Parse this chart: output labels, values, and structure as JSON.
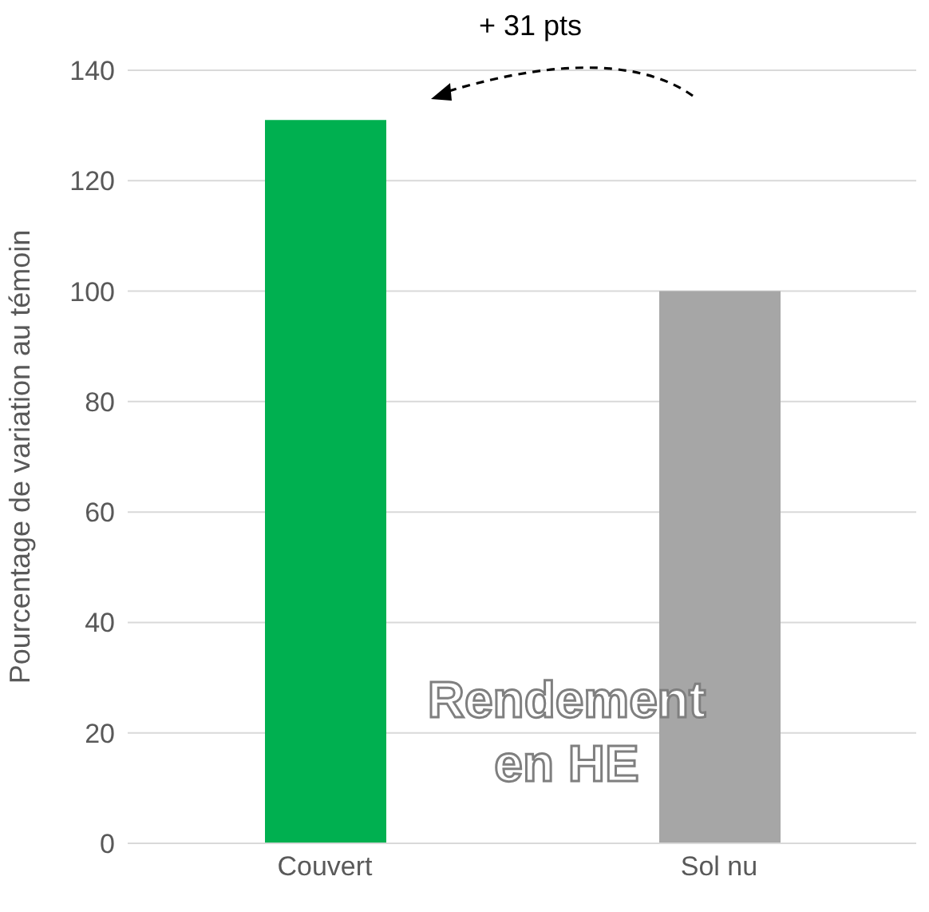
{
  "chart_data": {
    "type": "bar",
    "categories": [
      "Couvert",
      "Sol nu"
    ],
    "values": [
      131,
      100
    ],
    "colors": [
      "#00b050",
      "#a6a6a6"
    ],
    "ylabel": "Pourcentage de variation au témoin",
    "ylim": [
      0,
      140
    ],
    "yticks": [
      0,
      20,
      40,
      60,
      80,
      100,
      120,
      140
    ],
    "grid": "y",
    "annotations": [
      "+ 31 pts",
      "Rendement en HE"
    ]
  }
}
